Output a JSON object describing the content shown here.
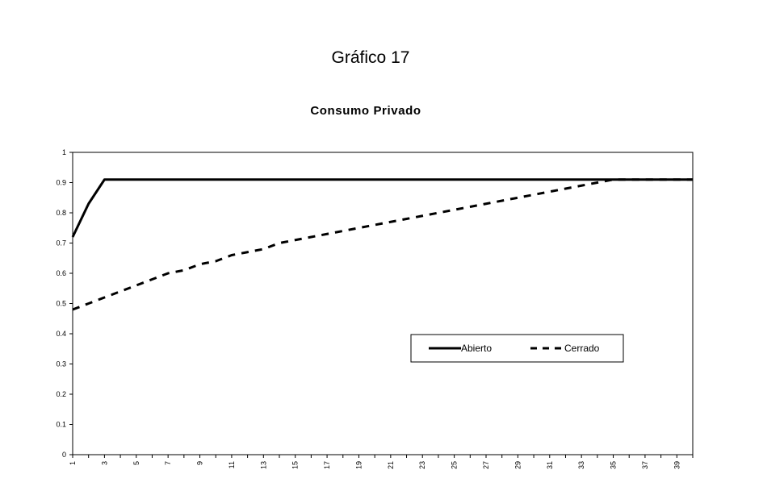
{
  "figure": {
    "label": "Gráfico 17"
  },
  "chart_data": {
    "type": "line",
    "title": "Consumo Privado",
    "xlabel": "",
    "ylabel": "",
    "x": [
      1,
      2,
      3,
      4,
      5,
      6,
      7,
      8,
      9,
      10,
      11,
      12,
      13,
      14,
      15,
      16,
      17,
      18,
      19,
      20,
      21,
      22,
      23,
      24,
      25,
      26,
      27,
      28,
      29,
      30,
      31,
      32,
      33,
      34,
      35,
      36,
      37,
      38,
      39,
      40
    ],
    "x_tick_labels": [
      "1",
      "3",
      "5",
      "7",
      "9",
      "11",
      "13",
      "15",
      "17",
      "19",
      "21",
      "23",
      "25",
      "27",
      "29",
      "31",
      "33",
      "35",
      "37",
      "39"
    ],
    "y_tick_labels": [
      "0",
      "0.1",
      "0.2",
      "0.3",
      "0.4",
      "0.5",
      "0.6",
      "0.7",
      "0.8",
      "0.9",
      "1"
    ],
    "xlim": [
      1,
      40
    ],
    "ylim": [
      0,
      1
    ],
    "grid": false,
    "legend_position": "lower-right, inside plot",
    "series": [
      {
        "name": "Abierto",
        "style": "solid",
        "color": "#000000",
        "values": [
          0.72,
          0.83,
          0.91,
          0.91,
          0.91,
          0.91,
          0.91,
          0.91,
          0.91,
          0.91,
          0.91,
          0.91,
          0.91,
          0.91,
          0.91,
          0.91,
          0.91,
          0.91,
          0.91,
          0.91,
          0.91,
          0.91,
          0.91,
          0.91,
          0.91,
          0.91,
          0.91,
          0.91,
          0.91,
          0.91,
          0.91,
          0.91,
          0.91,
          0.91,
          0.91,
          0.91,
          0.91,
          0.91,
          0.91,
          0.91
        ]
      },
      {
        "name": "Cerrado",
        "style": "dashed",
        "color": "#000000",
        "values": [
          0.48,
          0.5,
          0.52,
          0.54,
          0.56,
          0.58,
          0.6,
          0.61,
          0.63,
          0.64,
          0.66,
          0.67,
          0.68,
          0.7,
          0.71,
          0.72,
          0.73,
          0.74,
          0.75,
          0.76,
          0.77,
          0.78,
          0.79,
          0.8,
          0.81,
          0.82,
          0.83,
          0.84,
          0.85,
          0.86,
          0.87,
          0.88,
          0.89,
          0.9,
          0.91,
          0.91,
          0.91,
          0.91,
          0.91,
          0.91
        ]
      }
    ]
  }
}
